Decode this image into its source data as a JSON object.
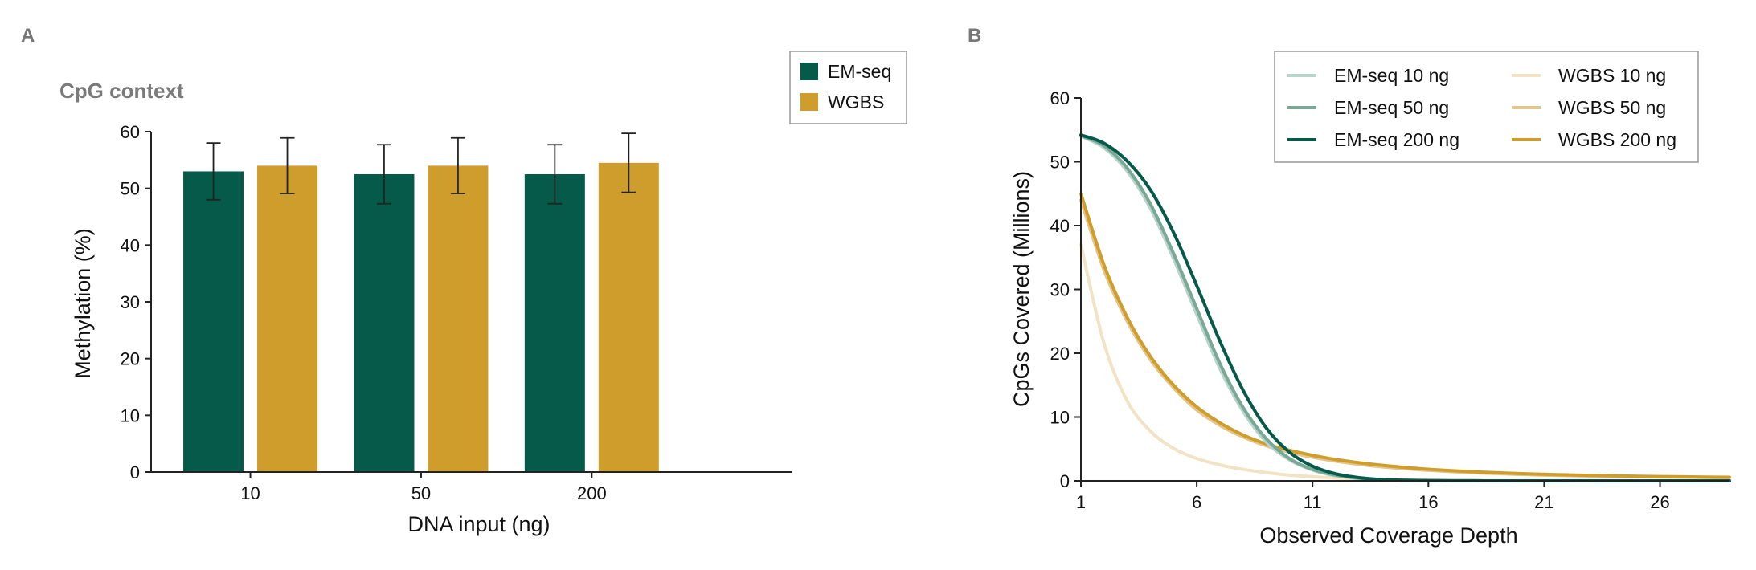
{
  "panels": {
    "a_label": "A",
    "b_label": "B"
  },
  "chart_data": [
    {
      "type": "bar",
      "title": "CpG context",
      "xlabel": "DNA input (ng)",
      "ylabel": "Methylation (%)",
      "categories": [
        "10",
        "50",
        "200"
      ],
      "ylim": [
        0,
        60
      ],
      "yticks": [
        0,
        10,
        20,
        30,
        40,
        50,
        60
      ],
      "legend_position": "top-right",
      "grid": false,
      "series": [
        {
          "name": "EM-seq",
          "color": "#065a49",
          "values": [
            53.0,
            52.5,
            52.5
          ],
          "errors": [
            5.0,
            5.2,
            5.2
          ]
        },
        {
          "name": "WGBS",
          "color": "#cf9d2c",
          "values": [
            54.0,
            54.0,
            54.5
          ],
          "errors": [
            4.9,
            4.9,
            5.2
          ]
        }
      ]
    },
    {
      "type": "line",
      "xlabel": "Observed Coverage Depth",
      "ylabel": "CpGs Covered (Millions)",
      "xlim": [
        1,
        29
      ],
      "ylim": [
        0,
        60
      ],
      "xticks": [
        1,
        6,
        11,
        16,
        21,
        26
      ],
      "yticks": [
        0,
        10,
        20,
        30,
        40,
        50,
        60
      ],
      "legend_position": "top-right",
      "grid": false,
      "x": [
        1,
        2,
        3,
        4,
        5,
        6,
        7,
        8,
        9,
        10,
        11,
        12,
        13,
        14,
        15,
        16,
        17,
        18,
        19,
        20,
        21,
        22,
        23,
        24,
        25,
        26,
        27,
        28,
        29
      ],
      "series": [
        {
          "name": "EM-seq 10 ng",
          "color": "#b9d5cb",
          "values": [
            54.0,
            52.2,
            48.5,
            42.7,
            34.8,
            26.1,
            17.6,
            10.9,
            6.1,
            3.3,
            1.7,
            0.8,
            0.4,
            0.2,
            0.1,
            0.05,
            0.02,
            0.01,
            0,
            0,
            0,
            0,
            0,
            0,
            0,
            0,
            0,
            0,
            0
          ]
        },
        {
          "name": "EM-seq 50 ng",
          "color": "#79a996",
          "values": [
            54.1,
            52.5,
            49.0,
            43.4,
            35.6,
            27.0,
            18.4,
            11.5,
            6.6,
            3.5,
            1.8,
            0.9,
            0.4,
            0.2,
            0.1,
            0.05,
            0.02,
            0.01,
            0,
            0,
            0,
            0,
            0,
            0,
            0,
            0,
            0,
            0,
            0
          ]
        },
        {
          "name": "EM-seq 200 ng",
          "color": "#065a49",
          "values": [
            54.2,
            52.9,
            50.1,
            45.6,
            38.9,
            30.6,
            21.9,
            14.2,
            8.3,
            4.5,
            2.3,
            1.1,
            0.5,
            0.2,
            0.1,
            0.05,
            0.02,
            0.01,
            0,
            0,
            0,
            0,
            0,
            0,
            0,
            0,
            0,
            0,
            0
          ]
        },
        {
          "name": "WGBS 10 ng",
          "color": "#f2e3c4",
          "values": [
            37.0,
            21.5,
            12.5,
            7.8,
            5.1,
            3.5,
            2.5,
            1.8,
            1.3,
            0.9,
            0.65,
            0.45,
            0.32,
            0.22,
            0.15,
            0.1,
            0.07,
            0.05,
            0.03,
            0.02,
            0.01,
            0.01,
            0,
            0,
            0,
            0,
            0,
            0,
            0
          ]
        },
        {
          "name": "WGBS 50 ng",
          "color": "#e4c58a",
          "values": [
            44.0,
            33.0,
            25.0,
            19.0,
            14.6,
            11.1,
            8.7,
            6.9,
            5.5,
            4.5,
            3.7,
            3.1,
            2.6,
            2.2,
            1.9,
            1.65,
            1.45,
            1.28,
            1.13,
            1.0,
            0.9,
            0.82,
            0.75,
            0.69,
            0.64,
            0.6,
            0.56,
            0.53,
            0.5
          ]
        },
        {
          "name": "WGBS 200 ng",
          "color": "#cf9d2c",
          "values": [
            45.0,
            33.8,
            25.6,
            19.5,
            15.0,
            11.6,
            9.1,
            7.2,
            5.8,
            4.8,
            4.0,
            3.35,
            2.85,
            2.45,
            2.1,
            1.82,
            1.6,
            1.42,
            1.27,
            1.14,
            1.03,
            0.94,
            0.86,
            0.79,
            0.73,
            0.68,
            0.64,
            0.6,
            0.57
          ]
        }
      ]
    }
  ]
}
